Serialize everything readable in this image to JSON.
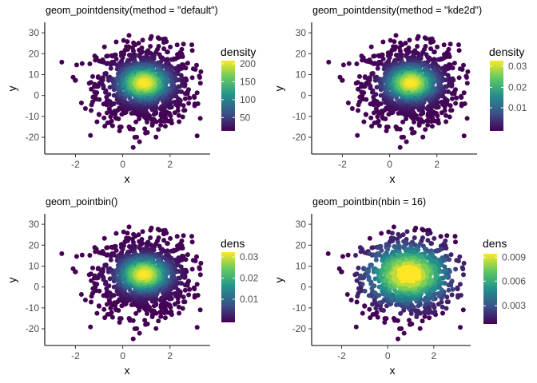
{
  "chart_data": [
    {
      "type": "scatter",
      "title": "geom_pointdensity(method = \"default\")",
      "xlabel": "x",
      "ylabel": "y",
      "xlim": [
        -3.3,
        3.7
      ],
      "ylim": [
        -28,
        35
      ],
      "x_ticks": [
        "-2",
        "0",
        "2"
      ],
      "y_ticks": [
        "30",
        "20",
        "10",
        "0",
        "-10",
        "-20"
      ],
      "legend": {
        "title": "density",
        "ticks": [
          "200",
          "150",
          "100",
          "50"
        ],
        "colormap": "viridis",
        "position": "right"
      },
      "color_scale": "uniform",
      "series": [
        {
          "distribution": "bivariate normal",
          "x_mean": 0.9,
          "x_sd": 1.0,
          "y_mean": 5.0,
          "y_sd": 9.5
        }
      ]
    },
    {
      "type": "scatter",
      "title": "geom_pointdensity(method = \"kde2d\")",
      "xlabel": "x",
      "ylabel": "y",
      "xlim": [
        -3.3,
        3.7
      ],
      "ylim": [
        -28,
        35
      ],
      "x_ticks": [
        "-2",
        "0",
        "2"
      ],
      "y_ticks": [
        "30",
        "20",
        "10",
        "0",
        "-10",
        "-20"
      ],
      "legend": {
        "title": "density",
        "ticks": [
          "0.03",
          "0.02",
          "0.01"
        ],
        "colormap": "viridis",
        "position": "right"
      },
      "color_scale": "uniform",
      "series": [
        {
          "distribution": "bivariate normal",
          "x_mean": 0.9,
          "x_sd": 1.0,
          "y_mean": 5.0,
          "y_sd": 9.5
        }
      ]
    },
    {
      "type": "scatter",
      "title": "geom_pointbin()",
      "xlabel": "x",
      "ylabel": "y",
      "xlim": [
        -3.3,
        3.7
      ],
      "ylim": [
        -28,
        35
      ],
      "x_ticks": [
        "-2",
        "0",
        "2"
      ],
      "y_ticks": [
        "30",
        "20",
        "10",
        "0",
        "-10",
        "-20"
      ],
      "legend": {
        "title": "dens",
        "ticks": [
          "0.03",
          "0.02",
          "0.01"
        ],
        "colormap": "viridis",
        "position": "right"
      },
      "color_scale": "uniform",
      "series": [
        {
          "distribution": "bivariate normal",
          "x_mean": 0.9,
          "x_sd": 1.0,
          "y_mean": 5.0,
          "y_sd": 9.5
        }
      ]
    },
    {
      "type": "scatter",
      "title": "geom_pointbin(nbin = 16)",
      "xlabel": "x",
      "ylabel": "y",
      "xlim": [
        -3.3,
        3.7
      ],
      "ylim": [
        -28,
        35
      ],
      "x_ticks": [
        "-2",
        "0",
        "2"
      ],
      "y_ticks": [
        "30",
        "20",
        "10",
        "0",
        "-10",
        "-20"
      ],
      "legend": {
        "title": "dens",
        "ticks": [
          "0.009",
          "0.006",
          "0.003"
        ],
        "colormap": "viridis",
        "position": "right"
      },
      "color_scale": "binned",
      "series": [
        {
          "distribution": "bivariate normal",
          "x_mean": 0.9,
          "x_sd": 1.0,
          "y_mean": 5.0,
          "y_sd": 9.5
        }
      ]
    }
  ]
}
